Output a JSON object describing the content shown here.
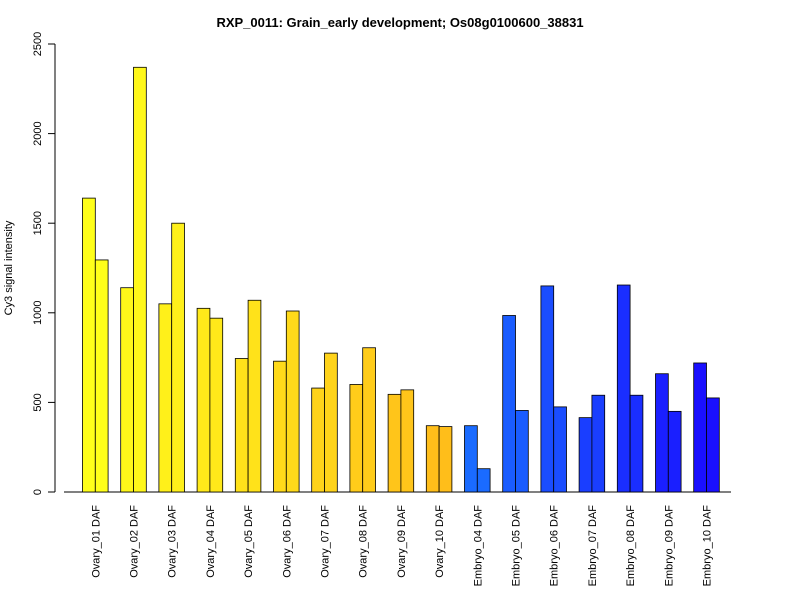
{
  "chart_data": {
    "type": "bar",
    "title": "RXP_0011: Grain_early development; Os08g0100600_38831",
    "ylabel": "Cy3 signal intensity",
    "xlabel": "",
    "ylim": [
      0,
      2500
    ],
    "yticks": [
      0,
      500,
      1000,
      1500,
      2000,
      2500
    ],
    "grid": false,
    "categories": [
      "Ovary_01 DAF",
      "Ovary_02 DAF",
      "Ovary_03 DAF",
      "Ovary_04 DAF",
      "Ovary_05 DAF",
      "Ovary_06 DAF",
      "Ovary_07 DAF",
      "Ovary_08 DAF",
      "Ovary_09 DAF",
      "Ovary_10 DAF",
      "Embryo_04 DAF",
      "Embryo_05 DAF",
      "Embryo_06 DAF",
      "Embryo_07 DAF",
      "Embryo_08 DAF",
      "Embryo_09 DAF",
      "Embryo_10 DAF"
    ],
    "series": [
      {
        "values": [
          1640,
          1140,
          1050,
          1025,
          745,
          730,
          580,
          600,
          545,
          370,
          370,
          985,
          1150,
          415,
          1155,
          660,
          720
        ]
      },
      {
        "values": [
          1295,
          2370,
          1500,
          970,
          1070,
          1010,
          775,
          805,
          570,
          365,
          130,
          455,
          475,
          540,
          540,
          450,
          525
        ]
      }
    ],
    "colors": [
      "#FFFF1A",
      "#FFF71A",
      "#FFF01A",
      "#FFE91A",
      "#FFE21A",
      "#FFDA1A",
      "#FFD31A",
      "#FFCC1A",
      "#FFC51A",
      "#FFBE1A",
      "#1A6BFF",
      "#1A5CFF",
      "#1A4DFF",
      "#1A3EFF",
      "#1A2EFF",
      "#1A1FFF",
      "#1A10FF"
    ]
  }
}
